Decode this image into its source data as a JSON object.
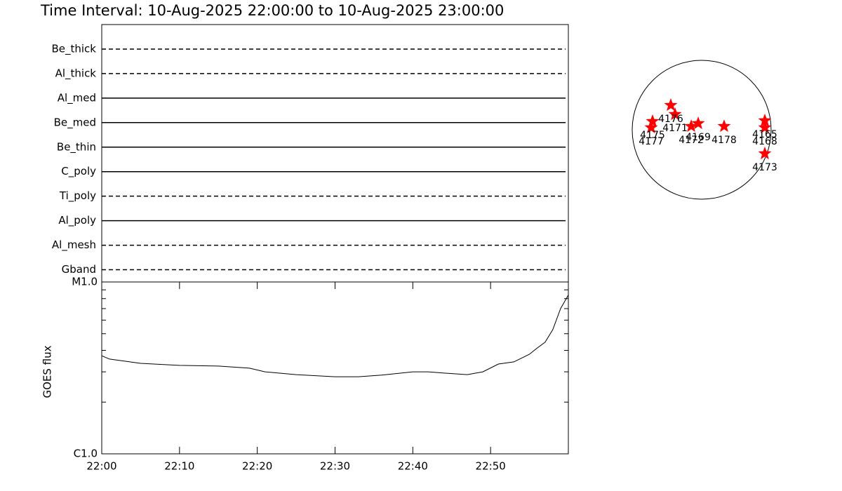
{
  "chart_data": [
    {
      "type": "timeline",
      "title": "Time Interval: 10-Aug-2025 22:00:00 to 10-Aug-2025 23:00:00",
      "categories": [
        "Be_thick",
        "Al_thick",
        "Al_med",
        "Be_med",
        "Be_thin",
        "C_poly",
        "Ti_poly",
        "Al_poly",
        "Al_mesh",
        "Gband"
      ],
      "styles": [
        "dashed",
        "dashed",
        "solid",
        "solid",
        "solid",
        "solid",
        "dashed",
        "solid",
        "dashed",
        "dashed"
      ],
      "color": "#000000"
    },
    {
      "type": "line",
      "ylabel": "GOES flux",
      "ylog": true,
      "color": "#000000",
      "x": [
        "22:00",
        "22:01",
        "22:05",
        "22:10",
        "22:15",
        "22:19",
        "22:21",
        "22:25",
        "22:30",
        "22:33",
        "22:36",
        "22:40",
        "22:42",
        "22:44",
        "22:47",
        "22:49",
        "22:51",
        "22:53",
        "22:55",
        "22:56",
        "22:57",
        "22:58",
        "22:59",
        "23:00"
      ],
      "values": [
        3.72e-06,
        3.56e-06,
        3.36e-06,
        3.27e-06,
        3.24e-06,
        3.15e-06,
        3e-06,
        2.89e-06,
        2.81e-06,
        2.81e-06,
        2.87e-06,
        3e-06,
        3e-06,
        2.95e-06,
        2.89e-06,
        3e-06,
        3.33e-06,
        3.43e-06,
        3.8e-06,
        4.13e-06,
        4.46e-06,
        5.28e-06,
        7e-06,
        8.4e-06
      ],
      "xlim": [
        "22:00",
        "23:00"
      ],
      "xticks": [
        "22:00",
        "22:10",
        "22:20",
        "22:30",
        "22:40",
        "22:50"
      ],
      "ylim": [
        1e-06,
        1e-05
      ],
      "yticks": [
        {
          "value": 1e-06,
          "label": "C1.0"
        },
        {
          "value": 1e-05,
          "label": "M1.0"
        }
      ],
      "yminorticks": [
        2e-06,
        3e-06,
        4e-06,
        5e-06,
        6e-06,
        7e-06,
        8e-06,
        9e-06
      ]
    },
    {
      "type": "scatter",
      "color": "#ff0000",
      "labels": [
        "4175",
        "4177",
        "4176",
        "4171",
        "4172",
        "4169",
        "4178",
        "4165",
        "4168",
        "4173"
      ],
      "x": [
        -679,
        -698,
        -427,
        -368,
        -145,
        -48,
        310,
        873,
        873,
        873
      ],
      "y": [
        116,
        29,
        339,
        213,
        48,
        87,
        48,
        126,
        29,
        -330
      ],
      "xlim": [
        -1000,
        1000
      ],
      "ylim": [
        -1000,
        1000
      ]
    }
  ]
}
